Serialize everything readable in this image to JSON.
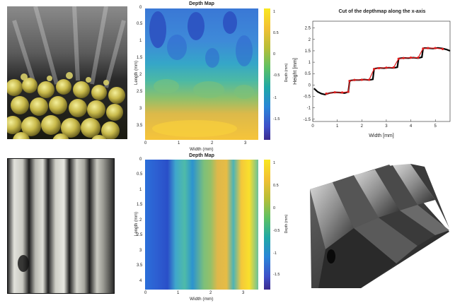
{
  "depth_map_top": {
    "title": "Depth Map",
    "xlabel": "Width (mm)",
    "ylabel": "Length (mm)",
    "colorbar_label": "Depth (mm)",
    "x_ticks": [
      "0",
      "1",
      "2",
      "3"
    ],
    "y_ticks": [
      "0",
      "0.5",
      "1",
      "1.5",
      "2",
      "2.5",
      "3",
      "3.5"
    ],
    "colorbar_ticks": [
      "1",
      "0.5",
      "0",
      "-0.5",
      "-1",
      "-1.5"
    ]
  },
  "depth_map_bottom": {
    "title": "Depth Map",
    "xlabel": "Width (mm)",
    "ylabel": "Length (mm)",
    "colorbar_label": "Depth (mm)",
    "x_ticks": [
      "0",
      "1",
      "2",
      "3"
    ],
    "y_ticks": [
      "0",
      "0.5",
      "1",
      "1.5",
      "2",
      "2.5",
      "3",
      "3.5",
      "4"
    ],
    "colorbar_ticks": [
      "1",
      "0.5",
      "0",
      "-0.5",
      "-1",
      "-1.5"
    ]
  },
  "chart_data": [
    {
      "type": "line",
      "title": "Cut of the depthmap along the x-axis",
      "xlabel": "Width [mm]",
      "ylabel": "Height [mm]",
      "xlim": [
        0,
        5.6
      ],
      "ylim": [
        -1.6,
        2.8
      ],
      "x_ticks": [
        "0",
        "1",
        "2",
        "3",
        "4",
        "5"
      ],
      "y_ticks": [
        "2.5",
        "2",
        "1.5",
        "1",
        "0.5",
        "0",
        "-0.5",
        "-1",
        "-1.5"
      ],
      "series": [
        {
          "color": "#000000",
          "x": [
            0.05,
            0.2,
            0.35,
            0.5,
            0.6,
            0.7,
            0.9,
            1.1,
            1.3,
            1.45,
            1.5,
            1.55,
            1.7,
            1.9,
            2.1,
            2.3,
            2.45,
            2.5,
            2.55,
            2.7,
            2.9,
            3.1,
            3.3,
            3.45,
            3.5,
            3.55,
            3.7,
            3.9,
            4.1,
            4.3,
            4.45,
            4.5,
            4.55,
            4.7,
            4.9,
            5.1,
            5.3,
            5.45,
            5.6
          ],
          "y": [
            -0.15,
            -0.3,
            -0.38,
            -0.42,
            -0.38,
            -0.35,
            -0.32,
            -0.33,
            -0.35,
            -0.3,
            0.15,
            0.2,
            0.22,
            0.22,
            0.24,
            0.22,
            0.25,
            0.7,
            0.72,
            0.75,
            0.74,
            0.76,
            0.75,
            0.78,
            1.15,
            1.17,
            1.19,
            1.18,
            1.2,
            1.18,
            1.22,
            1.6,
            1.62,
            1.62,
            1.6,
            1.63,
            1.6,
            1.56,
            1.5
          ]
        },
        {
          "color": "#e01e1e",
          "x": [
            0.55,
            0.9,
            1.2,
            1.45,
            1.5,
            1.7,
            2.0,
            2.3,
            2.5,
            2.7,
            3.0,
            3.3,
            3.5,
            3.7,
            4.0,
            4.3,
            4.5,
            4.7,
            5.0,
            5.3
          ],
          "y": [
            -0.38,
            -0.32,
            -0.33,
            -0.3,
            0.18,
            0.22,
            0.23,
            0.23,
            0.7,
            0.74,
            0.76,
            0.77,
            1.15,
            1.18,
            1.2,
            1.2,
            1.6,
            1.62,
            1.62,
            1.58
          ]
        }
      ]
    }
  ]
}
